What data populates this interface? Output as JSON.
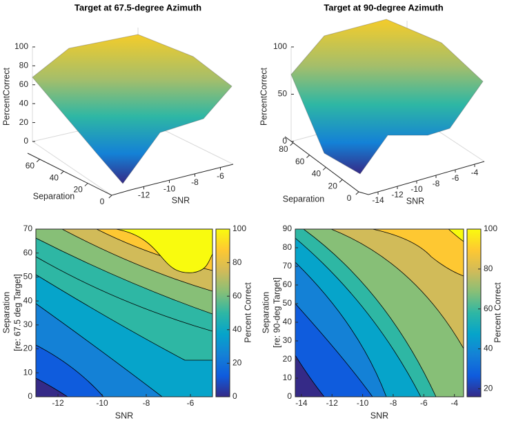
{
  "chart_data": [
    {
      "type": "surface",
      "title": "Target at 67.5-degree Azimuth",
      "zlabel": "PercentCorrect",
      "xlabel": "SNR",
      "ylabel": "Separation",
      "xlim": [
        -13,
        -5
      ],
      "ylim": [
        0,
        70
      ],
      "zlim": [
        0,
        100
      ],
      "xticks": [
        -12,
        -10,
        -8,
        -6
      ],
      "yticks": [
        0,
        20,
        40,
        60
      ],
      "zticks": [
        0,
        20,
        40,
        60,
        80,
        100
      ]
    },
    {
      "type": "surface",
      "title": "Target at 90-degree Azimuth",
      "zlabel": "PercentCorrect",
      "xlabel": "SNR",
      "ylabel": "Separation",
      "xlim": [
        -15,
        -3
      ],
      "ylim": [
        0,
        90
      ],
      "zlim": [
        0,
        100
      ],
      "xticks": [
        -14,
        -12,
        -10,
        -8,
        -6,
        -4
      ],
      "yticks": [
        0,
        20,
        40,
        60,
        80
      ],
      "zticks": [
        0,
        50,
        100
      ]
    },
    {
      "type": "contour",
      "xlabel": "SNR",
      "ylabel": [
        "Separation",
        "[re: 67.5 deg Target]"
      ],
      "colorbar_label": "Percent Correct",
      "xlim": [
        -13,
        -5
      ],
      "ylim": [
        0,
        70
      ],
      "xticks": [
        -12,
        -10,
        -8,
        -6
      ],
      "yticks": [
        0,
        10,
        20,
        30,
        40,
        50,
        60,
        70
      ],
      "clim": [
        0,
        100
      ],
      "cticks": [
        0,
        20,
        40,
        60,
        80,
        100
      ]
    },
    {
      "type": "contour",
      "xlabel": "SNR",
      "ylabel": [
        "Separation",
        "[re: 90-deg Target]"
      ],
      "colorbar_label": "Percent Correct",
      "xlim": [
        -14.4,
        -3.4
      ],
      "ylim": [
        0,
        90
      ],
      "xticks": [
        -14,
        -12,
        -10,
        -8,
        -6,
        -4
      ],
      "yticks": [
        0,
        10,
        20,
        30,
        40,
        50,
        60,
        70,
        80,
        90
      ],
      "clim": [
        16,
        100
      ],
      "cticks": [
        20,
        40,
        60,
        80,
        100
      ]
    }
  ]
}
